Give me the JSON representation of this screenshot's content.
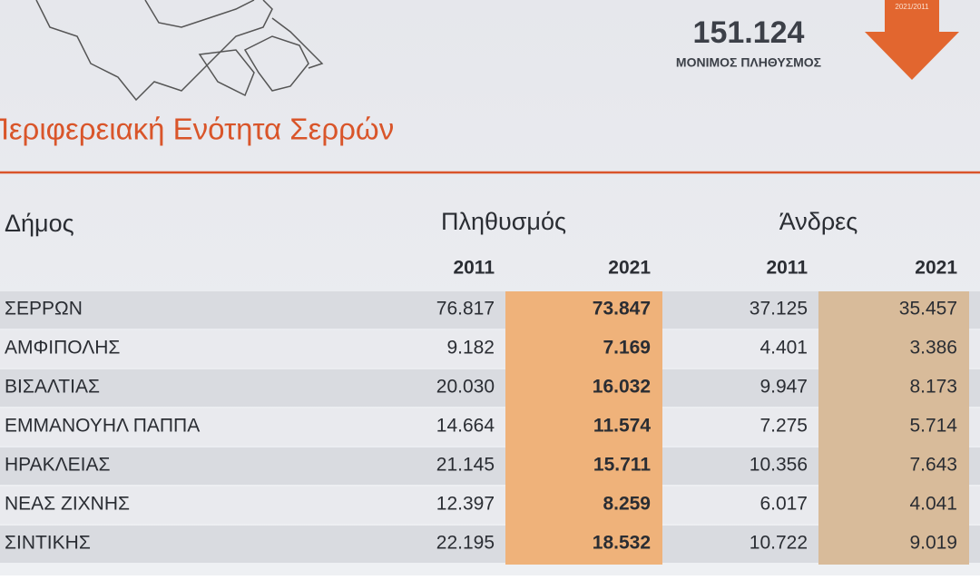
{
  "header": {
    "total": "151.124",
    "total_label": "ΜΟΝΙΜΟΣ ΠΛΗΘΥΣΜΟΣ",
    "arrow_label": "2021/2011",
    "title": "Περιφερειακή Ενότητα Σερρών"
  },
  "table": {
    "columns": [
      "Δήμος",
      "Πληθυσμός",
      "Άνδρες"
    ],
    "years": [
      "2011",
      "2021",
      "2011",
      "2021"
    ],
    "rows": [
      [
        "ΣΕΡΡΩΝ",
        "76.817",
        "73.847",
        "37.125",
        "35.457"
      ],
      [
        "ΑΜΦΙΠΟΛΗΣ",
        "9.182",
        "7.169",
        "4.401",
        "3.386"
      ],
      [
        "ΒΙΣΑΛΤΙΑΣ",
        "20.030",
        "16.032",
        "9.947",
        "8.173"
      ],
      [
        "ΕΜΜΑΝΟΥΗΛ ΠΑΠΠΑ",
        "14.664",
        "11.574",
        "7.275",
        "5.714"
      ],
      [
        "ΗΡΑΚΛΕΙΑΣ",
        "21.145",
        "15.711",
        "10.356",
        "7.643"
      ],
      [
        "ΝΕΑΣ ΖΙΧΝΗΣ",
        "12.397",
        "8.259",
        "6.017",
        "4.041"
      ],
      [
        "ΣΙΝΤΙΚΗΣ",
        "22.195",
        "18.532",
        "10.722",
        "9.019"
      ]
    ]
  }
}
